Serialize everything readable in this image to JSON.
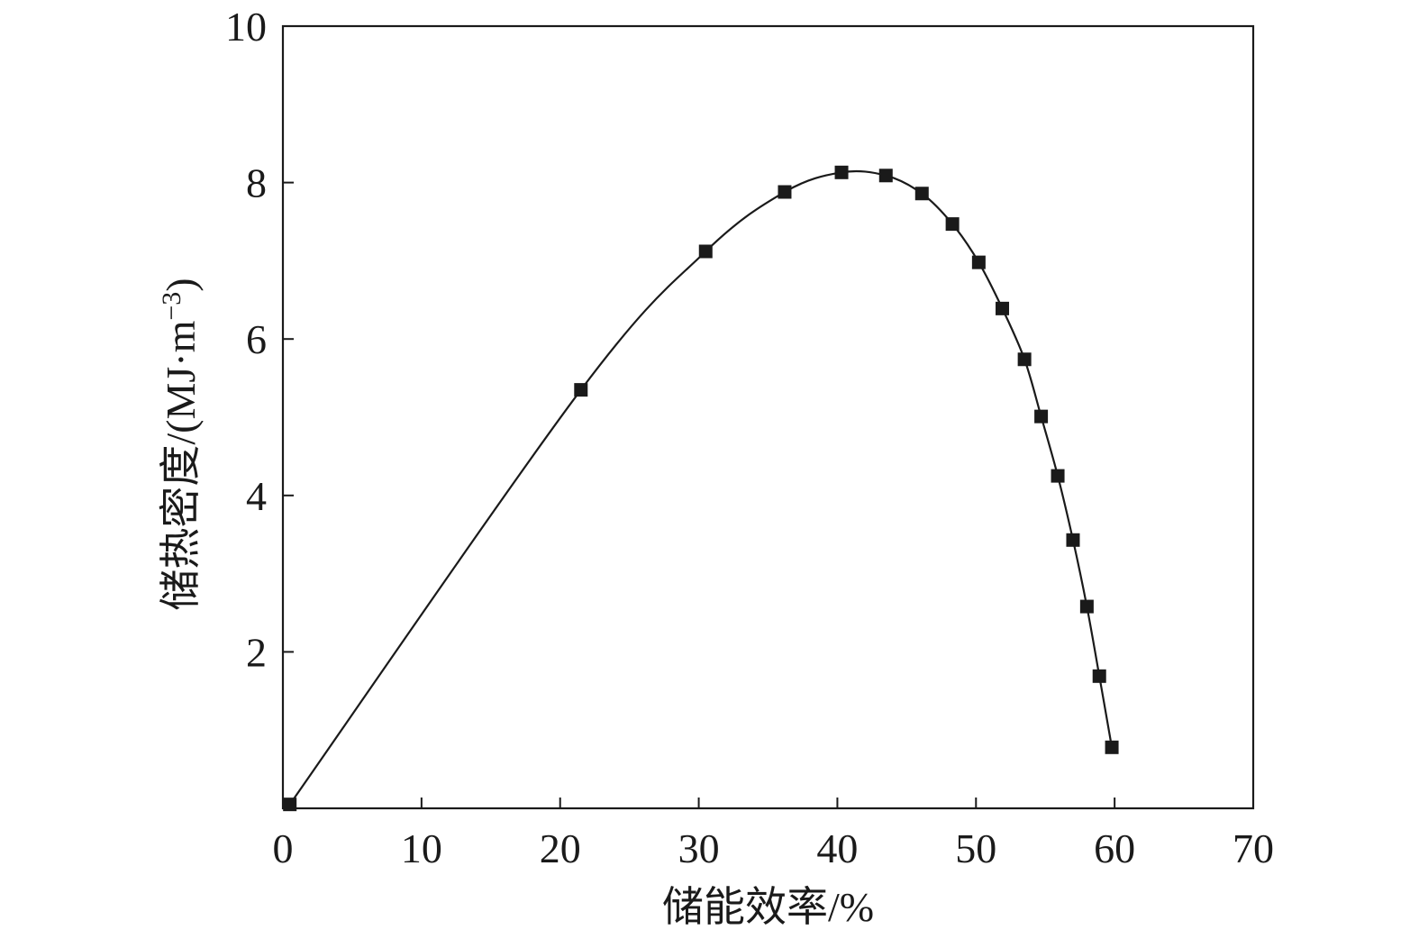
{
  "chart_data": {
    "type": "line",
    "xlabel": "储能效率/%",
    "ylabel_main": "储热密度/(MJ·m",
    "ylabel_sup": "−3",
    "ylabel_close": ")",
    "xlim": [
      0,
      70
    ],
    "ylim": [
      0,
      10
    ],
    "xticks": [
      0,
      10,
      20,
      30,
      40,
      50,
      60,
      70
    ],
    "yticks": [
      2,
      4,
      6,
      8,
      10
    ],
    "grid": false,
    "series": [
      {
        "marker": "square",
        "color": "#1a1a1a",
        "points": [
          {
            "x": 0.5,
            "y": 0.05
          },
          {
            "x": 21.5,
            "y": 5.35
          },
          {
            "x": 30.5,
            "y": 7.12
          },
          {
            "x": 36.2,
            "y": 7.88
          },
          {
            "x": 40.3,
            "y": 8.13
          },
          {
            "x": 43.5,
            "y": 8.09
          },
          {
            "x": 46.1,
            "y": 7.86
          },
          {
            "x": 48.3,
            "y": 7.47
          },
          {
            "x": 50.2,
            "y": 6.98
          },
          {
            "x": 51.9,
            "y": 6.39
          },
          {
            "x": 53.5,
            "y": 5.74
          },
          {
            "x": 54.7,
            "y": 5.01
          },
          {
            "x": 55.9,
            "y": 4.25
          },
          {
            "x": 57.0,
            "y": 3.43
          },
          {
            "x": 58.0,
            "y": 2.58
          },
          {
            "x": 58.9,
            "y": 1.69
          },
          {
            "x": 59.8,
            "y": 0.78
          }
        ]
      }
    ]
  }
}
